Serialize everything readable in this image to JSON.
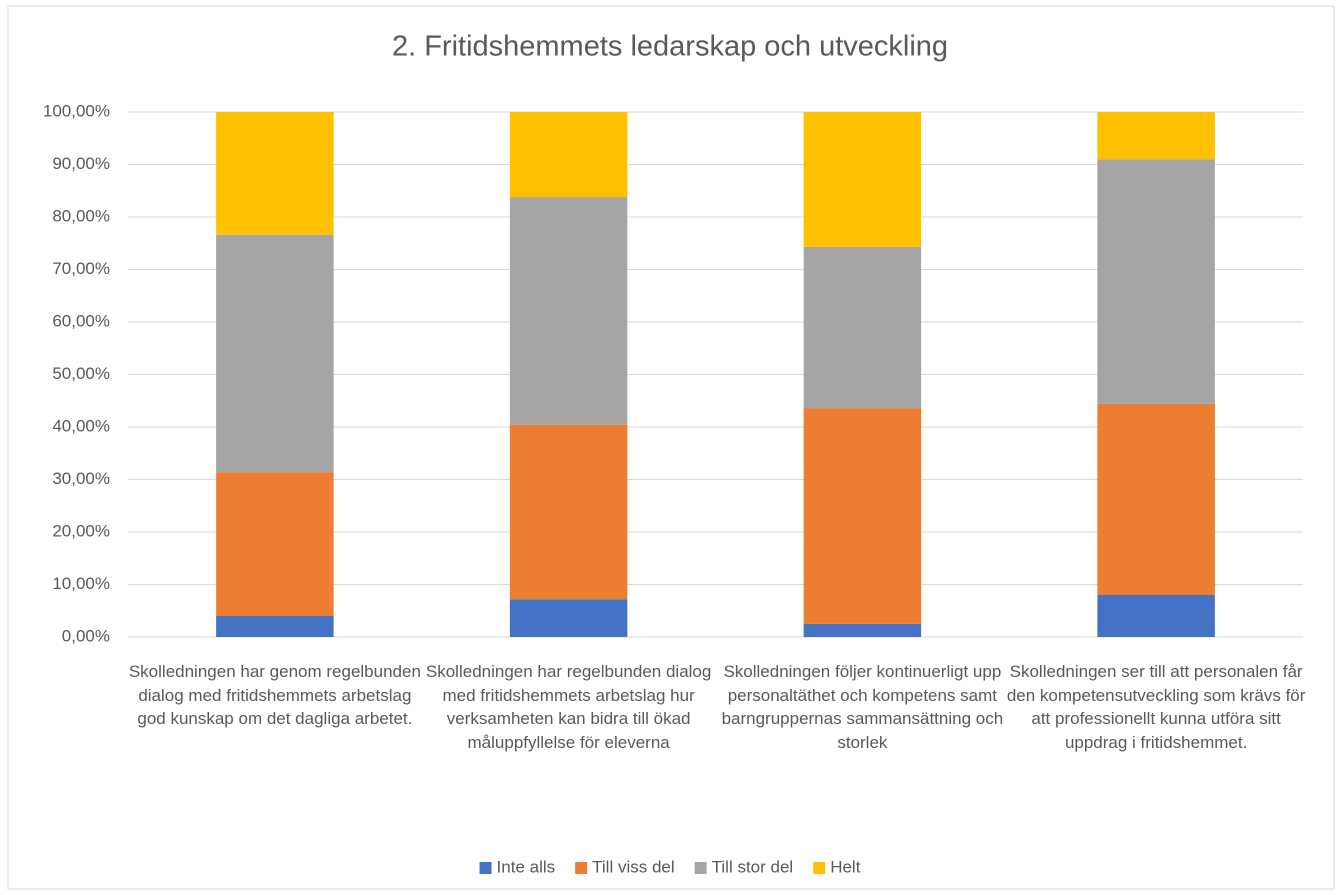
{
  "chart_data": {
    "type": "stacked_bar",
    "title": "2. Fritidshemmets ledarskap och utveckling",
    "categories": [
      "Skolledningen har genom regelbunden dialog med fritidshemmets arbetslag god kunskap om det dagliga arbetet.",
      "Skolledningen har regelbunden dialog med fritidshemmets arbetslag hur verksamheten kan bidra till ökad måluppfyllelse för eleverna",
      "Skolledningen följer kontinuerligt upp personaltäthet och kompetens samt barngruppernas sammansättning och storlek",
      "Skolledningen ser till att personalen får den kompetensutveckling som krävs för att professionellt kunna utföra sitt uppdrag i fritidshemmet."
    ],
    "series": [
      {
        "name": "Inte alls",
        "color": "#4472c4",
        "values": [
          4.0,
          7.2,
          2.5,
          8.0
        ]
      },
      {
        "name": "Till viss del",
        "color": "#ed7d31",
        "values": [
          27.4,
          33.2,
          41.1,
          36.4
        ]
      },
      {
        "name": "Till stor del",
        "color": "#a5a5a5",
        "values": [
          45.2,
          43.4,
          30.7,
          46.6
        ]
      },
      {
        "name": "Helt",
        "color": "#ffc000",
        "values": [
          23.4,
          16.2,
          25.7,
          9.0
        ]
      }
    ],
    "ylim": [
      0,
      100
    ],
    "yticks": [
      {
        "value": 0,
        "label": "0,00%"
      },
      {
        "value": 10,
        "label": "10,00%"
      },
      {
        "value": 20,
        "label": "20,00%"
      },
      {
        "value": 30,
        "label": "30,00%"
      },
      {
        "value": 40,
        "label": "40,00%"
      },
      {
        "value": 50,
        "label": "50,00%"
      },
      {
        "value": 60,
        "label": "60,00%"
      },
      {
        "value": 70,
        "label": "70,00%"
      },
      {
        "value": 80,
        "label": "80,00%"
      },
      {
        "value": 90,
        "label": "90,00%"
      },
      {
        "value": 100,
        "label": "100,00%"
      }
    ],
    "grid": true,
    "legend": "bottom"
  }
}
